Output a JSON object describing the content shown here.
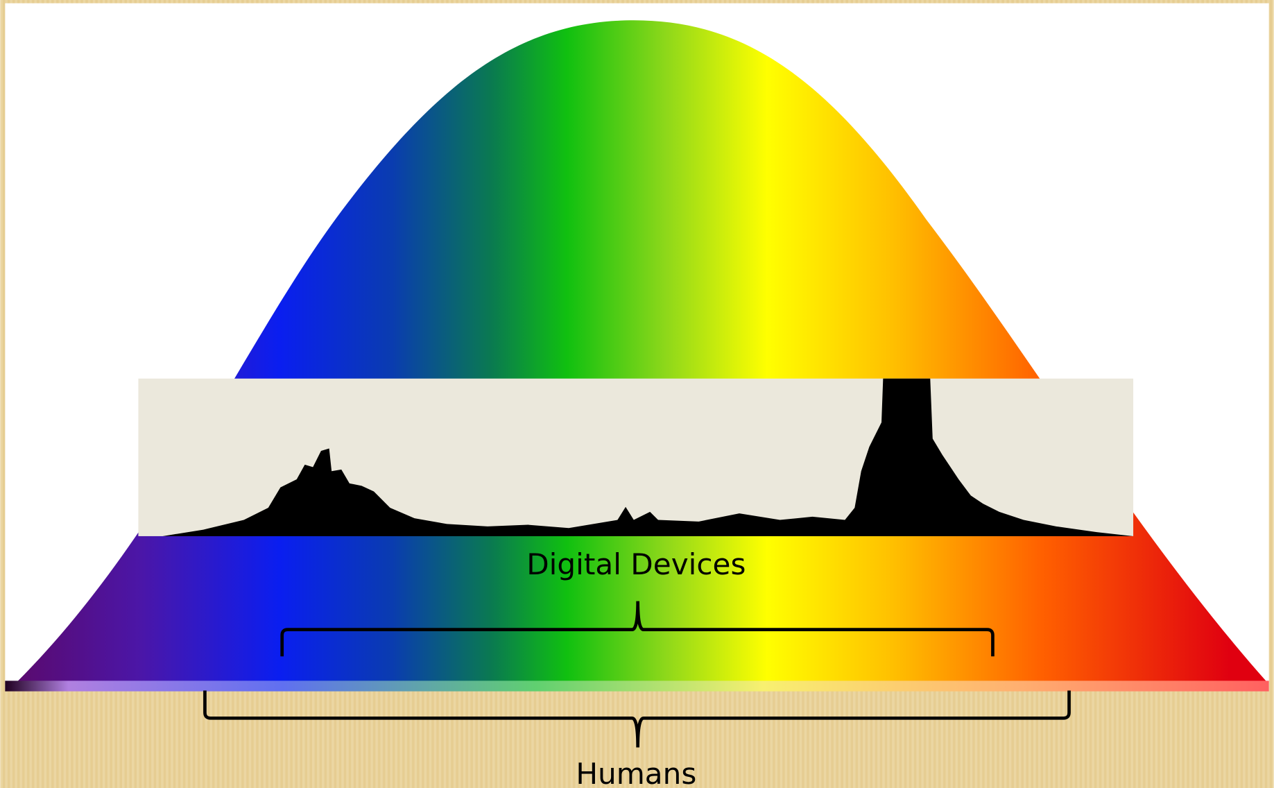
{
  "labels": {
    "digital": "Digital Devices",
    "humans": "Humans"
  }
}
